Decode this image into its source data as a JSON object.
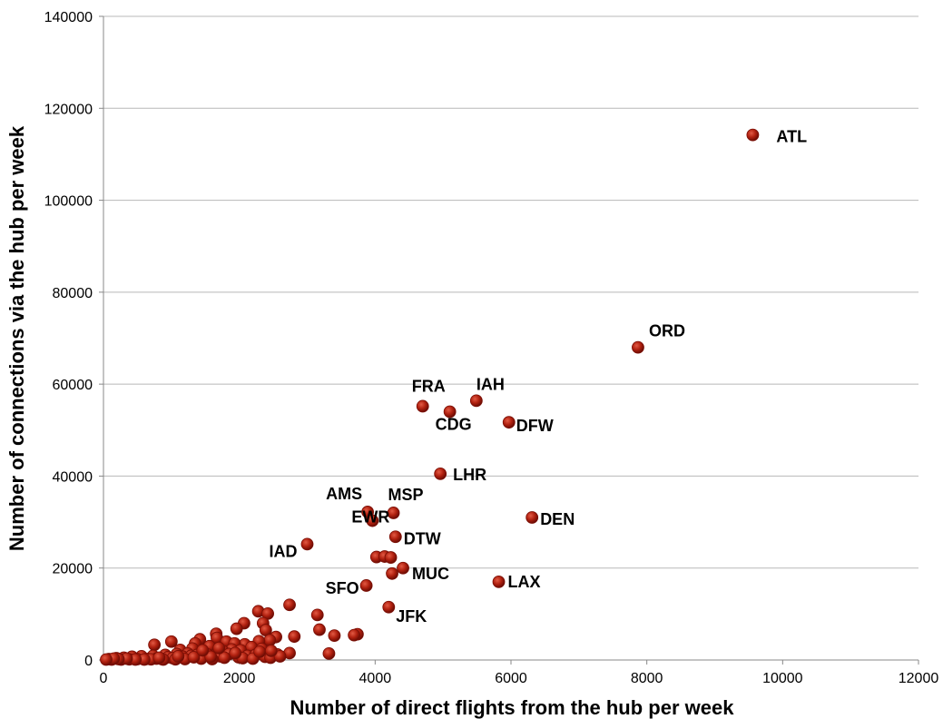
{
  "chart_data": {
    "type": "scatter",
    "title": "",
    "xlabel": "Number of direct flights from the hub per week",
    "ylabel": "Number of connections via the hub per week",
    "xlim": [
      0,
      12000
    ],
    "ylim": [
      0,
      140000
    ],
    "x_ticks": [
      "0",
      "2000",
      "4000",
      "6000",
      "8000",
      "10000",
      "12000"
    ],
    "y_ticks": [
      "0",
      "20000",
      "40000",
      "60000",
      "80000",
      "100000",
      "120000",
      "140000"
    ],
    "grid": "horizontal",
    "marker_color": "#a31b0b",
    "labeled_points": [
      {
        "label": "ATL",
        "x": 9560,
        "y": 114200
      },
      {
        "label": "ORD",
        "x": 7870,
        "y": 68000
      },
      {
        "label": "IAH",
        "x": 5490,
        "y": 56400
      },
      {
        "label": "FRA",
        "x": 4700,
        "y": 55200
      },
      {
        "label": "CDG",
        "x": 5100,
        "y": 54000
      },
      {
        "label": "DFW",
        "x": 5970,
        "y": 51700
      },
      {
        "label": "LHR",
        "x": 4960,
        "y": 40500
      },
      {
        "label": "AMS",
        "x": 3890,
        "y": 32200
      },
      {
        "label": "MSP",
        "x": 4270,
        "y": 32000
      },
      {
        "label": "DEN",
        "x": 6310,
        "y": 31000
      },
      {
        "label": "DTW",
        "x": 4300,
        "y": 26800
      },
      {
        "label": "EWR",
        "x": 3960,
        "y": 30300
      },
      {
        "label": "IAD",
        "x": 3000,
        "y": 25200
      },
      {
        "label": "MUC",
        "x": 4250,
        "y": 18800
      },
      {
        "label": "LAX",
        "x": 5820,
        "y": 17000
      },
      {
        "label": "SFO",
        "x": 3870,
        "y": 16200
      },
      {
        "label": "JFK",
        "x": 4200,
        "y": 11500
      }
    ],
    "points": [
      [
        4020,
        22400
      ],
      [
        4140,
        22500
      ],
      [
        4230,
        22300
      ],
      [
        4410,
        20000
      ],
      [
        2280,
        10600
      ],
      [
        2420,
        10100
      ],
      [
        2740,
        12000
      ],
      [
        3150,
        9800
      ],
      [
        2070,
        8000
      ],
      [
        2350,
        8000
      ],
      [
        1960,
        6800
      ],
      [
        2390,
        6500
      ],
      [
        3180,
        6600
      ],
      [
        3400,
        5300
      ],
      [
        3740,
        5600
      ],
      [
        3690,
        5400
      ],
      [
        2810,
        5100
      ],
      [
        2540,
        5000
      ],
      [
        2450,
        4300
      ],
      [
        2290,
        4100
      ],
      [
        1660,
        5700
      ],
      [
        1420,
        4500
      ],
      [
        1670,
        4800
      ],
      [
        1810,
        4000
      ],
      [
        1350,
        3600
      ],
      [
        1000,
        4000
      ],
      [
        750,
        3300
      ],
      [
        2080,
        3400
      ],
      [
        1930,
        3600
      ],
      [
        2180,
        2800
      ],
      [
        1560,
        3000
      ],
      [
        1310,
        2500
      ],
      [
        1130,
        2200
      ],
      [
        1890,
        2300
      ],
      [
        2330,
        2400
      ],
      [
        2020,
        2100
      ],
      [
        2560,
        1200
      ],
      [
        2740,
        1500
      ],
      [
        3320,
        1400
      ],
      [
        1760,
        1900
      ],
      [
        1480,
        1600
      ],
      [
        1240,
        1400
      ],
      [
        1080,
        1300
      ],
      [
        910,
        1100
      ],
      [
        730,
        900
      ],
      [
        560,
        800
      ],
      [
        420,
        700
      ],
      [
        300,
        500
      ],
      [
        190,
        400
      ],
      [
        80,
        200
      ],
      [
        120,
        100
      ],
      [
        260,
        100
      ],
      [
        380,
        150
      ],
      [
        500,
        200
      ],
      [
        640,
        250
      ],
      [
        780,
        300
      ],
      [
        860,
        200
      ],
      [
        950,
        600
      ],
      [
        1020,
        400
      ],
      [
        1170,
        700
      ],
      [
        1290,
        900
      ],
      [
        1380,
        1100
      ],
      [
        1530,
        1200
      ],
      [
        1650,
        1000
      ],
      [
        1720,
        800
      ],
      [
        1850,
        1300
      ],
      [
        1990,
        600
      ],
      [
        2120,
        900
      ],
      [
        2240,
        1100
      ],
      [
        2380,
        700
      ],
      [
        2460,
        500
      ],
      [
        2600,
        800
      ],
      [
        1600,
        200
      ],
      [
        1440,
        300
      ],
      [
        1200,
        200
      ],
      [
        1060,
        150
      ],
      [
        880,
        100
      ],
      [
        700,
        150
      ],
      [
        600,
        100
      ],
      [
        470,
        100
      ],
      [
        340,
        300
      ],
      [
        220,
        200
      ],
      [
        150,
        300
      ],
      [
        40,
        100
      ],
      [
        820,
        500
      ],
      [
        1100,
        800
      ],
      [
        1330,
        600
      ],
      [
        1580,
        700
      ],
      [
        1780,
        500
      ],
      [
        2050,
        400
      ],
      [
        2200,
        300
      ],
      [
        1940,
        1500
      ],
      [
        2300,
        1800
      ],
      [
        2470,
        2000
      ],
      [
        1700,
        2600
      ],
      [
        1460,
        2100
      ]
    ]
  }
}
